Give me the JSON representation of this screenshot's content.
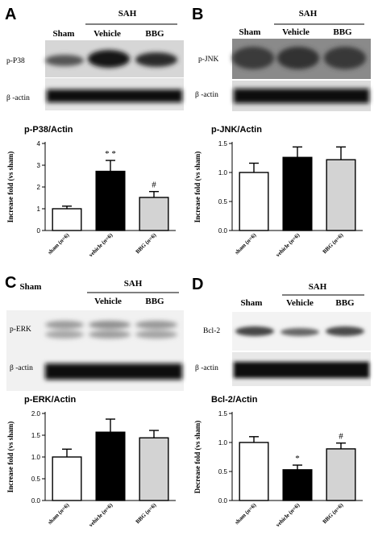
{
  "panels": [
    {
      "letter": "A",
      "group_label": "SAH",
      "lanes": [
        "Sham",
        "Vehicle",
        "BBG"
      ],
      "rows": [
        "p-P38",
        "β -actin"
      ],
      "colors": {
        "open": "#ffffff",
        "vehicle": "#000000",
        "bbg": "#d3d3d3"
      }
    },
    {
      "letter": "B",
      "group_label": "SAH",
      "lanes": [
        "Sham",
        "Vehicle",
        "BBG"
      ],
      "rows": [
        "p-JNK",
        "β -actin"
      ],
      "colors": {
        "open": "#ffffff",
        "vehicle": "#000000",
        "bbg": "#d3d3d3"
      }
    },
    {
      "letter": "C",
      "group_label": "SAH",
      "lanes": [
        "Sham",
        "Vehicle",
        "BBG"
      ],
      "rows": [
        "p-ERK",
        "β -actin"
      ],
      "colors": {
        "open": "#ffffff",
        "vehicle": "#000000",
        "bbg": "#d3d3d3"
      }
    },
    {
      "letter": "D",
      "group_label": "SAH",
      "lanes": [
        "Sham",
        "Vehicle",
        "BBG"
      ],
      "rows": [
        "Bcl-2",
        "β -actin"
      ],
      "colors": {
        "open": "#ffffff",
        "vehicle": "#000000",
        "bbg": "#d3d3d3"
      }
    }
  ],
  "chart_data": [
    {
      "type": "bar",
      "title": "p-P38/Actin",
      "ylabel": "Increase fold (vs sham)",
      "categories": [
        "sham (n=6)",
        "vehicle (n=6)",
        "BBG (n=6)"
      ],
      "values": [
        1.0,
        2.72,
        1.52
      ],
      "errors": [
        0.12,
        0.5,
        0.27
      ],
      "annotations": [
        "",
        "* *",
        "#"
      ],
      "ylim": [
        0,
        4
      ],
      "yticks": [
        "0",
        "1",
        "2",
        "3",
        "4"
      ]
    },
    {
      "type": "bar",
      "title": "p-JNK/Actin",
      "ylabel": "Increase fold (vs sham)",
      "categories": [
        "sham (n=6)",
        "vehicle (n=6)",
        "BBG (n=6)"
      ],
      "values": [
        1.0,
        1.26,
        1.22
      ],
      "errors": [
        0.16,
        0.18,
        0.22
      ],
      "annotations": [
        "",
        "",
        ""
      ],
      "ylim": [
        0,
        1.5
      ],
      "yticks": [
        "0.0",
        "0.5",
        "1.0",
        "1.5"
      ]
    },
    {
      "type": "bar",
      "title": "p-ERK/Actin",
      "ylabel": "Increase fold (vs sham)",
      "categories": [
        "sham (n=6)",
        "vehicle (n=6)",
        "BBG (n=6)"
      ],
      "values": [
        1.0,
        1.57,
        1.44
      ],
      "errors": [
        0.18,
        0.3,
        0.17
      ],
      "annotations": [
        "",
        "",
        ""
      ],
      "ylim": [
        0,
        2.0
      ],
      "yticks": [
        "0.0",
        "0.5",
        "1.0",
        "1.5",
        "2.0"
      ]
    },
    {
      "type": "bar",
      "title": "Bcl-2/Actin",
      "ylabel": "Decrease fold (vs sham)",
      "categories": [
        "sham (n=6)",
        "vehicle (n=6)",
        "BBG (n=6)"
      ],
      "values": [
        1.0,
        0.53,
        0.89
      ],
      "errors": [
        0.1,
        0.08,
        0.1
      ],
      "annotations": [
        "",
        "*",
        "#"
      ],
      "ylim": [
        0,
        1.5
      ],
      "yticks": [
        "0.0",
        "0.5",
        "1.0",
        "1.5"
      ]
    }
  ]
}
